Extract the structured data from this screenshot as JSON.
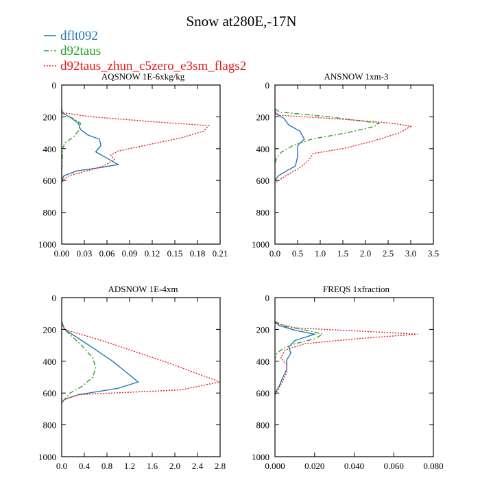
{
  "chart_data": {
    "type": "line",
    "title": "Snow at280E,-17N",
    "legend": {
      "placement": "top-left",
      "entries": [
        {
          "name": "dflt092",
          "color": "#1f77b4",
          "dash": "solid"
        },
        {
          "name": "d92taus",
          "color": "#2ca02c",
          "dash": "dashdot"
        },
        {
          "name": "d92taus_zhun_c5zero_e3sm_flags2",
          "color": "#e41a1c",
          "dash": "dotted"
        }
      ]
    },
    "panels": [
      {
        "title": "AQSNOW  1E-6xkg/kg",
        "xlim": [
          0,
          0.21
        ],
        "xticks": [
          0,
          0.03,
          0.06,
          0.09,
          0.12,
          0.15,
          0.18,
          0.21
        ],
        "xtick_labels": [
          "0.00",
          "0.03",
          "0.06",
          "0.09",
          "0.12",
          "0.15",
          "0.18",
          "0.21"
        ],
        "ylim": [
          1000,
          0
        ],
        "yticks": [
          0,
          200,
          400,
          600,
          800,
          1000
        ],
        "series": [
          {
            "name": "dflt092",
            "x": [
              0,
              0.001,
              0.012,
              0.022,
              0.025,
              0.035,
              0.05,
              0.052,
              0.045,
              0.06,
              0.075,
              0.05,
              0.02,
              0.003,
              0
            ],
            "y": [
              150,
              175,
              205,
              240,
              280,
              315,
              340,
              380,
              420,
              460,
              500,
              520,
              540,
              570,
              600
            ]
          },
          {
            "name": "d92taus",
            "x": [
              0,
              0.002,
              0.015,
              0.025,
              0.022,
              0.015,
              0.005,
              0.001,
              0
            ],
            "y": [
              160,
              180,
              210,
              240,
              290,
              330,
              360,
              400,
              600
            ]
          },
          {
            "name": "d92taus_zhun_c5zero_e3sm_flags2",
            "x": [
              0,
              0.002,
              0.04,
              0.12,
              0.195,
              0.188,
              0.16,
              0.12,
              0.075,
              0.065,
              0.07,
              0.055,
              0.03,
              0.01,
              0.002,
              0
            ],
            "y": [
              160,
              175,
              200,
              230,
              255,
              290,
              330,
              370,
              415,
              440,
              470,
              510,
              545,
              570,
              595,
              620
            ]
          }
        ]
      },
      {
        "title": "ANSNOW  1xm-3",
        "xlim": [
          0,
          3.5
        ],
        "xticks": [
          0,
          0.5,
          1,
          1.5,
          2,
          2.5,
          3,
          3.5
        ],
        "xtick_labels": [
          "0.0",
          "0.5",
          "1.0",
          "1.5",
          "2.0",
          "2.5",
          "3.0",
          "3.5"
        ],
        "ylim": [
          1000,
          0
        ],
        "yticks": [
          0,
          200,
          400,
          600,
          800,
          1000
        ],
        "series": [
          {
            "name": "dflt092",
            "x": [
              0,
              0.02,
              0.2,
              0.3,
              0.55,
              0.65,
              0.5,
              0.5,
              0.45,
              0.25,
              0.08,
              0
            ],
            "y": [
              160,
              180,
              210,
              250,
              290,
              340,
              380,
              450,
              510,
              540,
              570,
              600
            ]
          },
          {
            "name": "d92taus",
            "x": [
              0,
              0.1,
              1.2,
              2.3,
              2.2,
              1.6,
              0.8,
              0.4,
              0.15,
              0.03,
              0
            ],
            "y": [
              150,
              170,
              200,
              240,
              260,
              300,
              340,
              380,
              420,
              460,
              500
            ]
          },
          {
            "name": "d92taus_zhun_c5zero_e3sm_flags2",
            "x": [
              0,
              0.1,
              1.5,
              2.6,
              3.0,
              2.75,
              2.2,
              1.5,
              0.85,
              0.75,
              0.55,
              0.3,
              0.08,
              0
            ],
            "y": [
              170,
              190,
              215,
              240,
              260,
              300,
              350,
              400,
              430,
              470,
              520,
              560,
              600,
              620
            ]
          }
        ]
      },
      {
        "title": "ADSNOW  1E-4xm",
        "xlim": [
          0,
          2.8
        ],
        "xticks": [
          0,
          0.4,
          0.8,
          1.2,
          1.6,
          2.0,
          2.4,
          2.8
        ],
        "xtick_labels": [
          "0.0",
          "0.4",
          "0.8",
          "1.2",
          "1.6",
          "2.0",
          "2.4",
          "2.8"
        ],
        "ylim": [
          1000,
          0
        ],
        "yticks": [
          0,
          200,
          400,
          600,
          800,
          1000
        ],
        "series": [
          {
            "name": "dflt092",
            "x": [
              0,
              0.05,
              0.4,
              0.9,
              1.35,
              1.0,
              0.3,
              0.05,
              0
            ],
            "y": [
              150,
              200,
              280,
              400,
              530,
              570,
              610,
              640,
              660
            ]
          },
          {
            "name": "d92taus",
            "x": [
              0,
              0.05,
              0.35,
              0.55,
              0.6,
              0.55,
              0.35,
              0.15,
              0.05,
              0
            ],
            "y": [
              150,
              200,
              300,
              380,
              440,
              500,
              560,
              600,
              640,
              660
            ]
          },
          {
            "name": "d92taus_zhun_c5zero_e3sm_flags2",
            "x": [
              0,
              0.05,
              0.8,
              1.8,
              2.8,
              2.1,
              0.3,
              0.05,
              0
            ],
            "y": [
              160,
              200,
              280,
              400,
              530,
              580,
              610,
              640,
              660
            ]
          }
        ]
      },
      {
        "title": "FREQS  1xfraction",
        "xlim": [
          0,
          0.08
        ],
        "xticks": [
          0,
          0.02,
          0.04,
          0.06,
          0.08
        ],
        "xtick_labels": [
          "0.000",
          "0.020",
          "0.040",
          "0.060",
          "0.080"
        ],
        "ylim": [
          1000,
          0
        ],
        "yticks": [
          0,
          200,
          400,
          600,
          800,
          1000
        ],
        "series": [
          {
            "name": "dflt092",
            "x": [
              0,
              0.002,
              0.01,
              0.02,
              0.01,
              0.007,
              0.008,
              0.006,
              0.006,
              0.004,
              0.002,
              0
            ],
            "y": [
              150,
              175,
              205,
              230,
              270,
              310,
              350,
              390,
              450,
              500,
              560,
              600
            ]
          },
          {
            "name": "d92taus",
            "x": [
              0,
              0.005,
              0.018,
              0.024,
              0.02,
              0.01,
              0.004,
              0.001,
              0
            ],
            "y": [
              150,
              180,
              210,
              230,
              260,
              290,
              320,
              350,
              380
            ]
          },
          {
            "name": "d92taus_zhun_c5zero_e3sm_flags2",
            "x": [
              0,
              0.01,
              0.05,
              0.072,
              0.04,
              0.015,
              0.005,
              0.003,
              0.006,
              0.006,
              0.004,
              0.002,
              0
            ],
            "y": [
              160,
              190,
              215,
              230,
              260,
              290,
              330,
              380,
              420,
              470,
              520,
              570,
              610
            ]
          }
        ]
      }
    ]
  }
}
